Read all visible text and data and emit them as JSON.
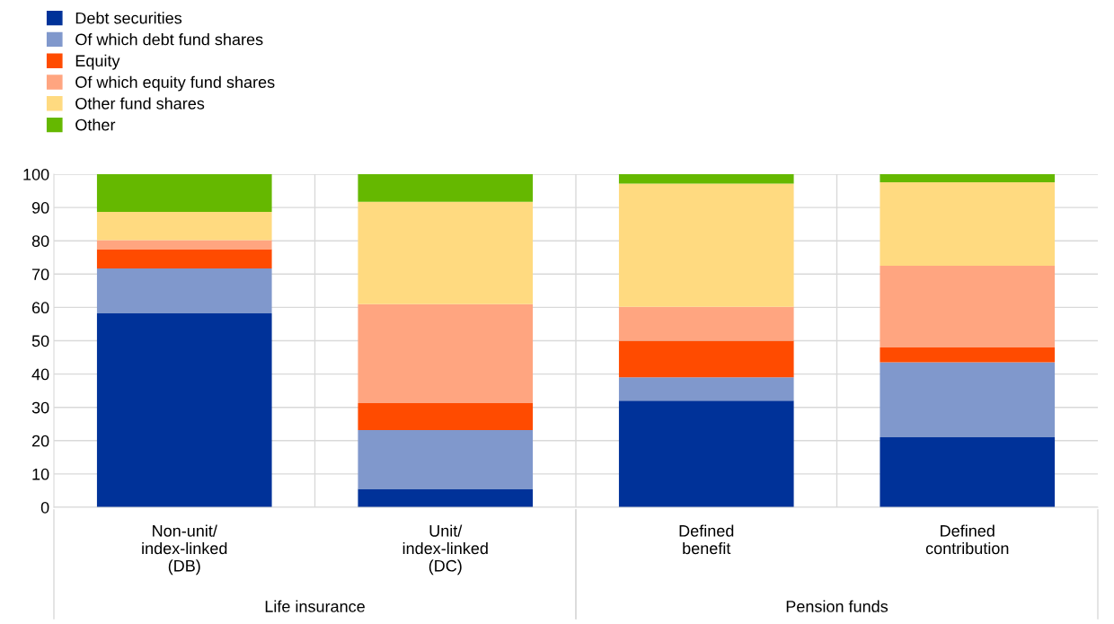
{
  "chart_data": {
    "type": "bar",
    "stacked": true,
    "categories": [
      "Non-unit/\nindex-linked\n(DB)",
      "Unit/\nindex-linked\n(DC)",
      "Defined\nbenefit",
      "Defined\ncontribution"
    ],
    "series": [
      {
        "name": "Debt securities",
        "color": "#003299",
        "values": [
          58.2,
          5.5,
          32,
          21
        ]
      },
      {
        "name": "Of which debt fund shares",
        "color": "#8098cc",
        "values": [
          13.5,
          17.7,
          7,
          22.5
        ]
      },
      {
        "name": "Equity",
        "color": "#ff4b00",
        "values": [
          5.8,
          8.1,
          11,
          4.5
        ]
      },
      {
        "name": "Of which equity fund shares",
        "color": "#ffa580",
        "values": [
          2.7,
          29.7,
          10.2,
          24.5
        ]
      },
      {
        "name": "Other fund shares",
        "color": "#ffda80",
        "values": [
          8.5,
          30.7,
          37,
          25.1
        ]
      },
      {
        "name": "Other",
        "color": "#65b800",
        "values": [
          11.3,
          8.3,
          2.8,
          2.4
        ]
      }
    ],
    "ylim": [
      0,
      100
    ],
    "yticks": [
      0,
      10,
      20,
      30,
      40,
      50,
      60,
      70,
      80,
      90,
      100
    ],
    "grid": true,
    "legend": "top left",
    "annotations": [
      "Life insurance",
      "Pension funds"
    ]
  }
}
